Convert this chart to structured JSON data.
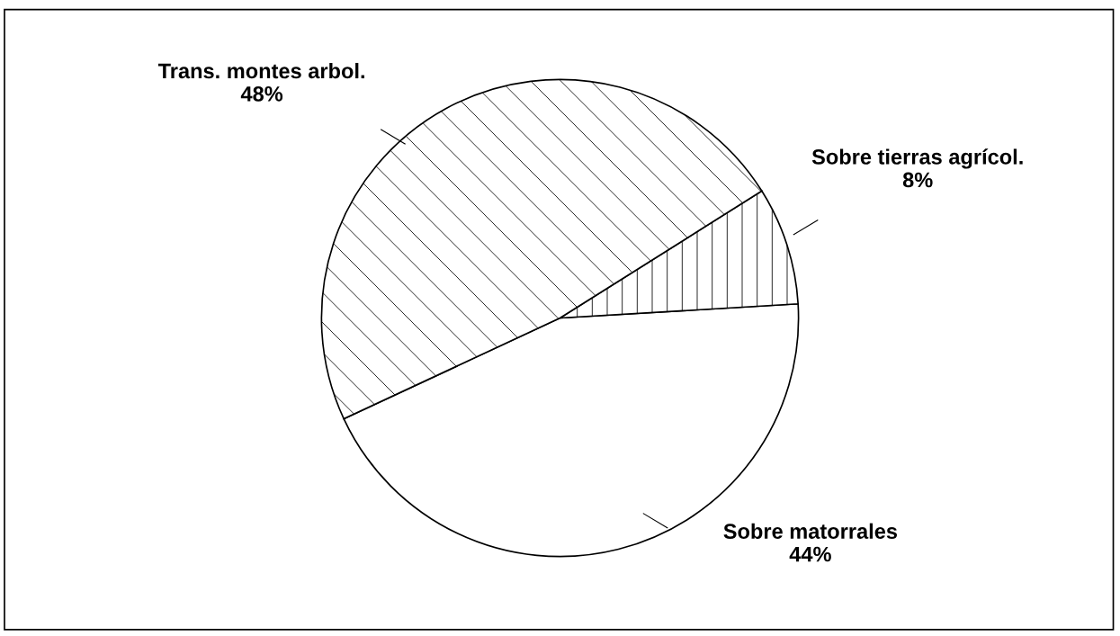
{
  "chart_data": {
    "type": "pie",
    "categories": [
      "Sobre matorrales",
      "Sobre tierras agrícol.",
      "Trans. montes arbol."
    ],
    "values": [
      44,
      8,
      48
    ],
    "value_labels": [
      "44%",
      "8%",
      "48%"
    ],
    "colors": [
      "#ffffff",
      "#ffffff",
      "#ffffff"
    ],
    "legend": false
  }
}
